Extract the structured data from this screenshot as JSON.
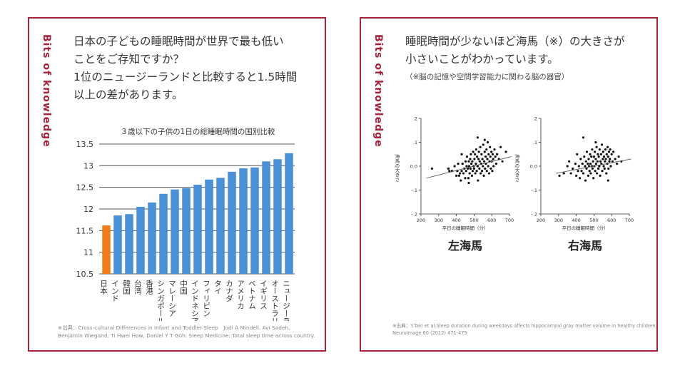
{
  "left_card": {
    "brand": "Bits of knowledge",
    "headline": [
      "日本の子どもの睡眠時間が世界で最も低い",
      "ことをご存知ですか？",
      "1位のニュージーランドと比較すると1.5時間",
      "以上の差があります。"
    ],
    "source": [
      "※出典：Cross-cultural Differences in Infant and Toddler Sleep　Jodi A Mindell, Avi Sadeh,",
      "Benjamin Wiegand, Ti Hwei How, Daniel Y T Goh. Sleep Medicine. Total sleep time across country."
    ]
  },
  "right_card": {
    "brand": "Bits of knowledge",
    "headline": [
      "睡眠時間が少ないほど海馬（※）の大きさが",
      "小さいことがわかっています。"
    ],
    "note": "（※脳の記憶や空間学習能力に関わる脳の器官）",
    "source": [
      "※出典：Y.Taki et al.Sleep duration during weekdays affects hippocampal gray matter volume in healthy children.",
      "NeuroImage 60 (2012) 471-475"
    ]
  },
  "colors": {
    "accent": "#a4243b",
    "bar": "#4a90d9",
    "highlight": "#f07d1a",
    "point": "#111111"
  },
  "chart_data": [
    {
      "type": "bar",
      "title": "３歳以下の子供の1日の総睡眠時間の国別比較",
      "categories": [
        "日本",
        "インド",
        "韓国",
        "台湾",
        "香港",
        "シンガポール",
        "マレーシア",
        "中国",
        "インドネシア",
        "フィリピン",
        "タイ",
        "カナダ",
        "アメリカ",
        "ベトナム",
        "イギリス",
        "オーストラリア",
        "ニュージーランド"
      ],
      "values": [
        11.62,
        11.85,
        11.88,
        12.05,
        12.15,
        12.35,
        12.45,
        12.48,
        12.56,
        12.68,
        12.72,
        12.86,
        12.94,
        12.96,
        13.1,
        13.15,
        13.29
      ],
      "highlight": "日本",
      "ylim": [
        10.5,
        13.5
      ],
      "yticks": [
        "10.5",
        "11",
        "11.5",
        "12",
        "12.5",
        "13",
        "13.5"
      ],
      "grid": true
    },
    {
      "type": "scatter",
      "caption": "左海馬",
      "xlabel": "平日の睡眠時間（分）",
      "ylabel": "海馬の大きさ",
      "xlim": [
        200,
        700
      ],
      "ylim": [
        -0.2,
        0.2
      ],
      "xticks": [
        "200",
        "300",
        "400",
        "500",
        "600",
        "700"
      ],
      "yticks": [
        ".2",
        ".1",
        "0.0",
        "-.1",
        "-.2"
      ],
      "trend": [
        [
          230,
          -0.05
        ],
        [
          710,
          0.04
        ]
      ],
      "points": [
        [
          262,
          -0.01
        ],
        [
          355,
          -0.01
        ],
        [
          360,
          -0.02
        ],
        [
          375,
          -0.02
        ],
        [
          390,
          0.0
        ],
        [
          400,
          -0.04
        ],
        [
          405,
          -0.02
        ],
        [
          410,
          0.01
        ],
        [
          415,
          -0.04
        ],
        [
          420,
          -0.03
        ],
        [
          425,
          -0.06
        ],
        [
          430,
          -0.02
        ],
        [
          435,
          0.01
        ],
        [
          440,
          -0.03
        ],
        [
          445,
          -0.01
        ],
        [
          450,
          -0.05
        ],
        [
          452,
          0.02
        ],
        [
          455,
          -0.02
        ],
        [
          458,
          0.0
        ],
        [
          460,
          0.04
        ],
        [
          465,
          -0.01
        ],
        [
          468,
          -0.05
        ],
        [
          470,
          0.02
        ],
        [
          472,
          0.0
        ],
        [
          475,
          -0.03
        ],
        [
          478,
          0.03
        ],
        [
          480,
          -0.01
        ],
        [
          482,
          0.05
        ],
        [
          485,
          0.01
        ],
        [
          488,
          -0.04
        ],
        [
          490,
          0.02
        ],
        [
          492,
          -0.02
        ],
        [
          495,
          0.06
        ],
        [
          497,
          0.0
        ],
        [
          500,
          -0.01
        ],
        [
          502,
          0.03
        ],
        [
          505,
          0.05
        ],
        [
          507,
          -0.03
        ],
        [
          510,
          0.01
        ],
        [
          512,
          0.07
        ],
        [
          515,
          -0.02
        ],
        [
          517,
          0.04
        ],
        [
          520,
          0.0
        ],
        [
          522,
          -0.06
        ],
        [
          525,
          0.03
        ],
        [
          527,
          0.06
        ],
        [
          530,
          -0.01
        ],
        [
          532,
          0.02
        ],
        [
          535,
          0.08
        ],
        [
          537,
          -0.03
        ],
        [
          540,
          0.01
        ],
        [
          542,
          0.05
        ],
        [
          545,
          -0.02
        ],
        [
          547,
          0.03
        ],
        [
          550,
          0.0
        ],
        [
          552,
          0.09
        ],
        [
          555,
          -0.04
        ],
        [
          557,
          0.02
        ],
        [
          560,
          0.06
        ],
        [
          562,
          -0.01
        ],
        [
          565,
          0.04
        ],
        [
          567,
          0.01
        ],
        [
          570,
          0.07
        ],
        [
          572,
          -0.02
        ],
        [
          575,
          0.03
        ],
        [
          577,
          0.1
        ],
        [
          580,
          0.0
        ],
        [
          582,
          0.05
        ],
        [
          585,
          -0.03
        ],
        [
          587,
          0.02
        ],
        [
          590,
          0.08
        ],
        [
          592,
          0.04
        ],
        [
          595,
          -0.01
        ],
        [
          598,
          0.06
        ],
        [
          600,
          0.02
        ],
        [
          603,
          -0.02
        ],
        [
          605,
          0.05
        ],
        [
          608,
          0.03
        ],
        [
          610,
          0.0
        ],
        [
          615,
          0.07
        ],
        [
          620,
          0.04
        ],
        [
          625,
          0.01
        ],
        [
          630,
          0.05
        ],
        [
          640,
          0.03
        ],
        [
          650,
          0.08
        ],
        [
          660,
          0.02
        ],
        [
          680,
          0.06
        ],
        [
          520,
          0.12
        ],
        [
          560,
          0.11
        ],
        [
          470,
          -0.07
        ],
        [
          430,
          0.05
        ]
      ]
    },
    {
      "type": "scatter",
      "caption": "右海馬",
      "xlabel": "平日の睡眠時間（分）",
      "ylabel": "海馬の大きさ",
      "xlim": [
        200,
        700
      ],
      "ylim": [
        -0.2,
        0.2
      ],
      "xticks": [
        "200",
        "300",
        "400",
        "500",
        "600",
        "700"
      ],
      "yticks": [
        ".2",
        ".1",
        "0.0",
        "-.1",
        "-.2"
      ],
      "trend": [
        [
          285,
          -0.03
        ],
        [
          710,
          0.03
        ]
      ],
      "points": [
        [
          305,
          -0.04
        ],
        [
          330,
          -0.03
        ],
        [
          360,
          0.02
        ],
        [
          370,
          -0.03
        ],
        [
          380,
          -0.01
        ],
        [
          395,
          0.01
        ],
        [
          400,
          -0.04
        ],
        [
          405,
          0.05
        ],
        [
          410,
          -0.02
        ],
        [
          415,
          0.0
        ],
        [
          420,
          -0.05
        ],
        [
          425,
          0.03
        ],
        [
          430,
          -0.02
        ],
        [
          435,
          0.01
        ],
        [
          440,
          -0.03
        ],
        [
          445,
          0.04
        ],
        [
          450,
          0.0
        ],
        [
          452,
          -0.06
        ],
        [
          455,
          0.02
        ],
        [
          458,
          -0.01
        ],
        [
          460,
          0.06
        ],
        [
          465,
          0.01
        ],
        [
          468,
          -0.04
        ],
        [
          470,
          0.03
        ],
        [
          472,
          0.0
        ],
        [
          475,
          -0.02
        ],
        [
          478,
          0.05
        ],
        [
          480,
          0.01
        ],
        [
          482,
          -0.03
        ],
        [
          485,
          0.04
        ],
        [
          488,
          0.0
        ],
        [
          490,
          0.07
        ],
        [
          492,
          -0.01
        ],
        [
          495,
          0.02
        ],
        [
          497,
          -0.05
        ],
        [
          500,
          0.04
        ],
        [
          502,
          0.0
        ],
        [
          505,
          0.06
        ],
        [
          507,
          -0.02
        ],
        [
          510,
          0.03
        ],
        [
          512,
          0.01
        ],
        [
          515,
          0.08
        ],
        [
          517,
          -0.03
        ],
        [
          520,
          0.02
        ],
        [
          522,
          0.05
        ],
        [
          525,
          -0.01
        ],
        [
          527,
          0.04
        ],
        [
          530,
          0.0
        ],
        [
          532,
          0.07
        ],
        [
          535,
          -0.04
        ],
        [
          537,
          0.02
        ],
        [
          540,
          0.05
        ],
        [
          542,
          0.01
        ],
        [
          545,
          0.09
        ],
        [
          547,
          -0.02
        ],
        [
          550,
          0.03
        ],
        [
          552,
          0.06
        ],
        [
          555,
          0.0
        ],
        [
          557,
          0.04
        ],
        [
          560,
          -0.01
        ],
        [
          562,
          0.02
        ],
        [
          565,
          0.07
        ],
        [
          567,
          0.03
        ],
        [
          570,
          -0.03
        ],
        [
          572,
          0.05
        ],
        [
          575,
          0.01
        ],
        [
          577,
          0.08
        ],
        [
          580,
          0.04
        ],
        [
          582,
          -0.01
        ],
        [
          585,
          0.06
        ],
        [
          587,
          0.02
        ],
        [
          590,
          0.03
        ],
        [
          592,
          0.07
        ],
        [
          595,
          0.0
        ],
        [
          600,
          0.05
        ],
        [
          605,
          0.02
        ],
        [
          610,
          0.06
        ],
        [
          620,
          0.03
        ],
        [
          630,
          0.01
        ],
        [
          640,
          0.04
        ],
        [
          655,
          0.02
        ],
        [
          440,
          0.12
        ],
        [
          510,
          0.1
        ],
        [
          580,
          -0.06
        ],
        [
          350,
          0.0
        ]
      ]
    }
  ]
}
